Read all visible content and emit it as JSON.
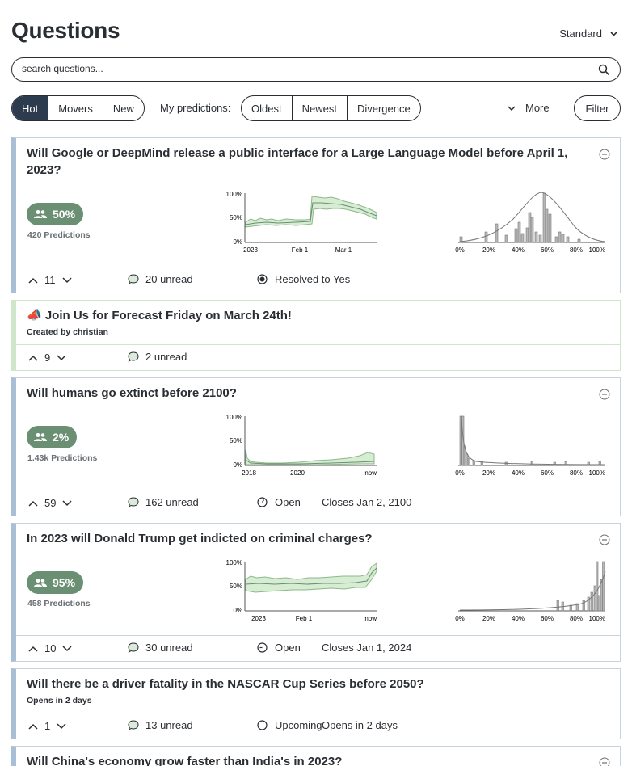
{
  "page": {
    "title": "Questions",
    "sort_value": "Standard"
  },
  "search": {
    "placeholder": "search questions..."
  },
  "filters": {
    "main_tabs": [
      "Hot",
      "Movers",
      "New"
    ],
    "active_tab": "Hot",
    "my_predictions_label": "My predictions:",
    "my_prediction_tabs": [
      "Oldest",
      "Newest",
      "Divergence"
    ],
    "more_label": "More",
    "filter_label": "Filter"
  },
  "cards": [
    {
      "title": "Will Google or DeepMind release a public interface for a Large Language Model before April 1, 2023?",
      "community_prediction": "50%",
      "prediction_count": "420 Predictions",
      "votes": "11",
      "comments": "20 unread",
      "status": "Resolved to Yes",
      "timeline": {
        "x_ticks": [
          "2023",
          "Feb 1",
          "Mar 1"
        ],
        "y_ticks": [
          "100%",
          "50%",
          "0%"
        ]
      },
      "histogram": {
        "x_ticks": [
          "0%",
          "20%",
          "40%",
          "60%",
          "80%",
          "100%"
        ]
      }
    },
    {
      "title": "📣 Join Us for Forecast Friday on March 24th!",
      "created_by": "Created by christian",
      "votes": "9",
      "comments": "2 unread"
    },
    {
      "title": "Will humans go extinct before 2100?",
      "community_prediction": "2%",
      "prediction_count": "1.43k Predictions",
      "votes": "59",
      "comments": "162 unread",
      "status": "Open",
      "closes": "Closes Jan 2, 2100",
      "timeline": {
        "x_ticks": [
          "2018",
          "2020",
          "now"
        ],
        "y_ticks": [
          "100%",
          "50%",
          "0%"
        ]
      },
      "histogram": {
        "x_ticks": [
          "0%",
          "20%",
          "40%",
          "60%",
          "80%",
          "100%"
        ]
      }
    },
    {
      "title": "In 2023 will Donald Trump get indicted on criminal charges?",
      "community_prediction": "95%",
      "prediction_count": "458 Predictions",
      "votes": "10",
      "comments": "30 unread",
      "status": "Open",
      "closes": "Closes Jan 1, 2024",
      "timeline": {
        "x_ticks": [
          "2023",
          "Feb 1",
          "now"
        ],
        "y_ticks": [
          "100%",
          "50%",
          "0%"
        ]
      },
      "histogram": {
        "x_ticks": [
          "0%",
          "20%",
          "40%",
          "60%",
          "80%",
          "100%"
        ]
      }
    },
    {
      "title": "Will there be a driver fatality in the NASCAR Cup Series before 2050?",
      "opens_sub": "Opens in 2 days",
      "votes": "1",
      "comments": "13 unread",
      "status": "Upcoming",
      "opens": "Opens in 2 days"
    },
    {
      "title": "Will China's economy grow faster than India's in 2023?"
    }
  ],
  "colors": {
    "accent_dark": "#2d3b4e",
    "pill_green": "#6b8f73",
    "question_bar": "#a9bfd6",
    "notebook_bar": "#a8dba1"
  }
}
